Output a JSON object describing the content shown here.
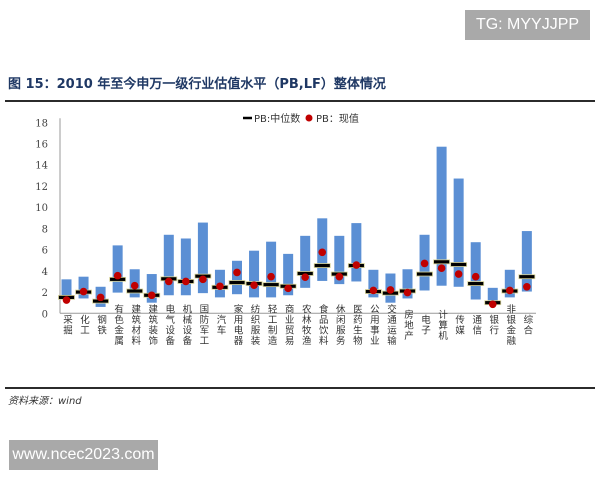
{
  "watermarks": {
    "top": "TG: MYYJJPP",
    "bottom": "www.ncec2023.com"
  },
  "title": "图 15：2010 年至今申万一级行业估值水平（PB,LF）整体情况",
  "source": "资料来源：wind",
  "colors": {
    "range_bar": "#5b8fd4",
    "median": "#000000",
    "current": "#c00000",
    "title": "#1f3864"
  },
  "chart_data": {
    "type": "bar",
    "subtype": "floating range bar with median marker and current-value dot",
    "categories": [
      "采掘",
      "化工",
      "钢铁",
      "有色金属",
      "建筑材料",
      "建筑装饰",
      "电气设备",
      "机械设备",
      "国防军工",
      "汽车",
      "家用电器",
      "纺织服装",
      "轻工制造",
      "商业贸易",
      "农林牧渔",
      "食品饮料",
      "休闲服务",
      "医药生物",
      "公用事业",
      "交通运输",
      "房地产",
      "电子",
      "计算机",
      "传媒",
      "通信",
      "银行",
      "非银金融",
      "综合"
    ],
    "range_low": [
      1.4,
      1.4,
      0.6,
      1.95,
      1.5,
      1.0,
      1.7,
      1.7,
      1.9,
      1.5,
      1.8,
      1.5,
      1.5,
      1.7,
      2.4,
      3.05,
      2.75,
      3.0,
      1.5,
      1.0,
      1.4,
      2.15,
      2.6,
      2.5,
      1.3,
      0.8,
      1.5,
      2.05
    ],
    "range_high": [
      3.2,
      3.45,
      2.5,
      6.4,
      4.15,
      3.7,
      7.4,
      7.05,
      8.55,
      4.1,
      4.95,
      5.9,
      6.75,
      5.6,
      7.3,
      8.95,
      7.3,
      8.5,
      4.1,
      3.75,
      4.15,
      7.4,
      15.7,
      12.7,
      6.7,
      2.4,
      4.1,
      7.75
    ],
    "series": [
      {
        "name": "PB:中位数",
        "values": [
          1.5,
          2.0,
          1.15,
          3.2,
          2.1,
          1.7,
          3.25,
          3.0,
          3.5,
          2.45,
          2.9,
          2.8,
          2.7,
          2.55,
          3.75,
          4.5,
          3.7,
          4.5,
          2.05,
          1.9,
          2.1,
          3.7,
          4.85,
          4.6,
          2.8,
          1.0,
          2.1,
          3.45
        ]
      },
      {
        "name": "PB：现值",
        "values": [
          1.25,
          2.05,
          1.5,
          3.55,
          2.6,
          1.7,
          3.0,
          3.0,
          3.2,
          2.55,
          3.85,
          2.65,
          3.45,
          2.35,
          3.4,
          5.75,
          3.45,
          4.55,
          2.15,
          2.2,
          1.95,
          4.7,
          4.25,
          3.7,
          3.45,
          0.85,
          2.15,
          2.5
        ]
      }
    ],
    "yticks": [
      "0",
      "2",
      "4",
      "6",
      "8",
      "10",
      "12",
      "14",
      "16",
      "18"
    ],
    "ylim": [
      0,
      18
    ],
    "grid": false,
    "legend": "top-center"
  }
}
